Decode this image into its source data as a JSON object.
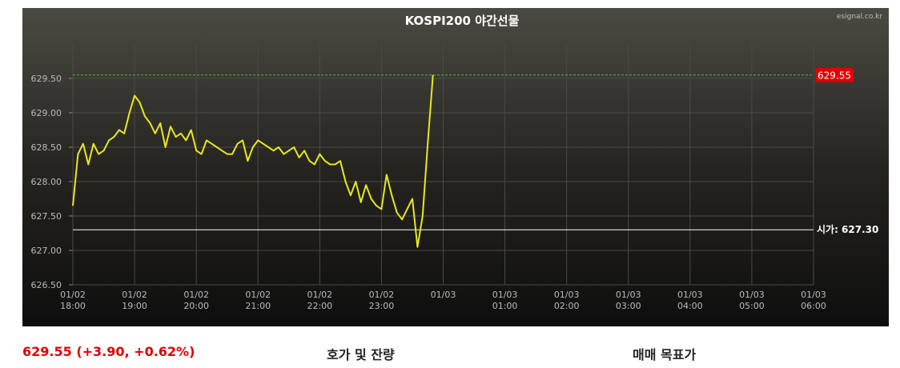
{
  "chart_data": {
    "type": "line",
    "title": "KOSPI200 야간선물",
    "source": "esignal.co.kr",
    "x": [
      "01/02 18:00",
      "01/02 18:05",
      "01/02 18:10",
      "01/02 18:15",
      "01/02 18:20",
      "01/02 18:25",
      "01/02 18:30",
      "01/02 18:35",
      "01/02 18:40",
      "01/02 18:45",
      "01/02 18:50",
      "01/02 18:55",
      "01/02 19:00",
      "01/02 19:05",
      "01/02 19:10",
      "01/02 19:15",
      "01/02 19:20",
      "01/02 19:25",
      "01/02 19:30",
      "01/02 19:35",
      "01/02 19:40",
      "01/02 19:45",
      "01/02 19:50",
      "01/02 19:55",
      "01/02 20:00",
      "01/02 20:05",
      "01/02 20:10",
      "01/02 20:15",
      "01/02 20:20",
      "01/02 20:25",
      "01/02 20:30",
      "01/02 20:35",
      "01/02 20:40",
      "01/02 20:45",
      "01/02 20:50",
      "01/02 20:55",
      "01/02 21:00",
      "01/02 21:05",
      "01/02 21:10",
      "01/02 21:15",
      "01/02 21:20",
      "01/02 21:25",
      "01/02 21:30",
      "01/02 21:35",
      "01/02 21:40",
      "01/02 21:45",
      "01/02 21:50",
      "01/02 21:55",
      "01/02 22:00",
      "01/02 22:05",
      "01/02 22:10",
      "01/02 22:15",
      "01/02 22:20",
      "01/02 22:25",
      "01/02 22:30",
      "01/02 22:35",
      "01/02 22:40",
      "01/02 22:45",
      "01/02 22:50",
      "01/02 22:55",
      "01/02 23:00",
      "01/02 23:05",
      "01/02 23:10",
      "01/02 23:15",
      "01/02 23:20",
      "01/02 23:25",
      "01/02 23:30",
      "01/02 23:35",
      "01/02 23:40",
      "01/02 23:45",
      "01/02 23:50"
    ],
    "series": [
      {
        "color": "#e8e81e",
        "values": [
          627.65,
          628.4,
          628.55,
          628.25,
          628.55,
          628.4,
          628.45,
          628.6,
          628.65,
          628.75,
          628.7,
          629.0,
          629.25,
          629.15,
          628.95,
          628.85,
          628.7,
          628.85,
          628.5,
          628.8,
          628.65,
          628.7,
          628.6,
          628.75,
          628.45,
          628.4,
          628.6,
          628.55,
          628.5,
          628.45,
          628.4,
          628.4,
          628.55,
          628.6,
          628.3,
          628.5,
          628.6,
          628.55,
          628.5,
          628.45,
          628.5,
          628.4,
          628.45,
          628.5,
          628.35,
          628.45,
          628.3,
          628.25,
          628.4,
          628.3,
          628.25,
          628.25,
          628.3,
          628.0,
          627.8,
          628.0,
          627.7,
          627.95,
          627.75,
          627.65,
          627.6,
          628.1,
          627.8,
          627.55,
          627.45,
          627.6,
          627.75,
          627.05,
          627.5,
          628.55,
          629.55
        ]
      }
    ],
    "xlim": [
      "01/02 18:00",
      "01/03 06:00"
    ],
    "xticks": [
      {
        "value": "01/02 18:00",
        "label": "01/02 18:00"
      },
      {
        "value": "01/02 19:00",
        "label": "01/02 19:00"
      },
      {
        "value": "01/02 20:00",
        "label": "01/02 20:00"
      },
      {
        "value": "01/02 21:00",
        "label": "01/02 21:00"
      },
      {
        "value": "01/02 22:00",
        "label": "01/02 22:00"
      },
      {
        "value": "01/02 23:00",
        "label": "01/02 23:00"
      },
      {
        "value": "01/03 00:00",
        "label": "01/03"
      },
      {
        "value": "01/03 01:00",
        "label": "01/03 01:00"
      },
      {
        "value": "01/03 02:00",
        "label": "01/03 02:00"
      },
      {
        "value": "01/03 03:00",
        "label": "01/03 03:00"
      },
      {
        "value": "01/03 04:00",
        "label": "01/03 04:00"
      },
      {
        "value": "01/03 05:00",
        "label": "01/03 05:00"
      },
      {
        "value": "01/03 06:00",
        "label": "01/03 06:00"
      }
    ],
    "ylim": [
      626.5,
      630.0
    ],
    "yticks": [
      {
        "value": 626.5,
        "label": "626.50"
      },
      {
        "value": 627,
        "label": "627.00"
      },
      {
        "value": 627.5,
        "label": "627.50"
      },
      {
        "value": 628,
        "label": "628.00"
      },
      {
        "value": 628.5,
        "label": "628.50"
      },
      {
        "value": 629,
        "label": "629.00"
      },
      {
        "value": 629.5,
        "label": "629.50"
      }
    ],
    "grid": true,
    "current": {
      "value": 629.55,
      "label": "629.55",
      "color": "#33cc33"
    },
    "open": {
      "value": 627.3,
      "label": "시가: 627.30",
      "color": "#ffffff"
    }
  },
  "footer": {
    "quote": "629.55 (+3.90, +0.62%)",
    "orderbook": "호가 및 잔량",
    "target": "매매 목표가"
  }
}
